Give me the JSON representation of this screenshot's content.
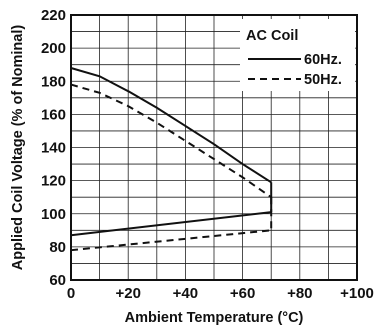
{
  "chart_data": {
    "type": "line",
    "xlabel": "Ambient Temperature (°C)",
    "ylabel": "Applied Coil Voltage (% of Nominal)",
    "xlim": [
      0,
      100
    ],
    "ylim": [
      60,
      220
    ],
    "x_ticks": [
      0,
      20,
      40,
      60,
      80,
      100
    ],
    "x_tick_labels": [
      "0",
      "+20",
      "+40",
      "+60",
      "+80",
      "+100"
    ],
    "y_ticks": [
      60,
      80,
      100,
      120,
      140,
      160,
      180,
      200,
      220
    ],
    "y_tick_labels": [
      "60",
      "80",
      "100",
      "120",
      "140",
      "160",
      "180",
      "200",
      "220"
    ],
    "grid": true,
    "legend": {
      "title": "AC Coil",
      "placement": "top-right",
      "entries": [
        "60Hz.",
        "50Hz."
      ]
    },
    "series": [
      {
        "name": "60Hz.",
        "style": "solid",
        "color": "#111111",
        "upper": {
          "x": [
            0,
            10,
            20,
            30,
            40,
            50,
            60,
            70
          ],
          "y": [
            188,
            183,
            174,
            164,
            153,
            142,
            130,
            119
          ]
        },
        "lower": {
          "x": [
            0,
            70
          ],
          "y": [
            87,
            101
          ]
        },
        "closing_x": 70
      },
      {
        "name": "50Hz.",
        "style": "dashed",
        "color": "#111111",
        "upper": {
          "x": [
            0,
            10,
            20,
            30,
            40,
            50,
            60,
            70
          ],
          "y": [
            178,
            173,
            165,
            155,
            144,
            133,
            122,
            110
          ]
        },
        "lower": {
          "x": [
            0,
            70
          ],
          "y": [
            78,
            90
          ]
        },
        "closing_x": 70
      }
    ]
  }
}
